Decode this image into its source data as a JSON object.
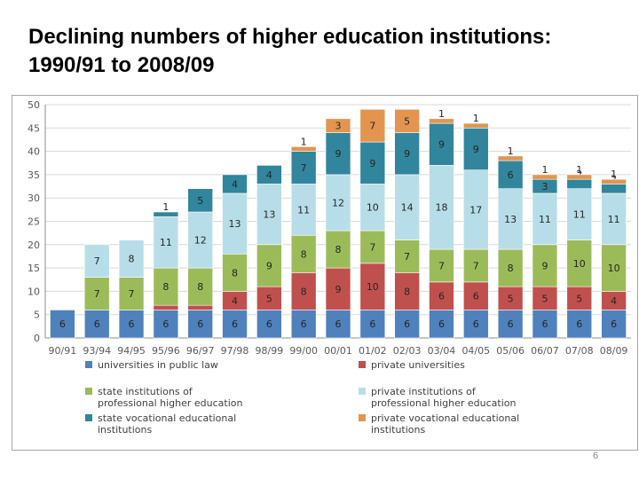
{
  "title": "Declining numbers of higher education institutions: 1990/91 to 2008/09",
  "page_number": "6",
  "colors": {
    "universities": "#4f81bd",
    "private_universities": "#c0504d",
    "state_professional": "#9bbb59",
    "private_professional": "#b7dee8",
    "state_vocational": "#31859c",
    "private_vocational": "#e3954f"
  },
  "chart_data": {
    "type": "bar",
    "stacked": true,
    "categories": [
      "90/91",
      "93/94",
      "94/95",
      "95/96",
      "96/97",
      "97/98",
      "98/99",
      "99/00",
      "00/01",
      "01/02",
      "02/03",
      "03/04",
      "04/05",
      "05/06",
      "06/07",
      "07/08",
      "08/09"
    ],
    "ylim": [
      0,
      50
    ],
    "yticks": [
      0,
      5,
      10,
      15,
      20,
      25,
      30,
      35,
      40,
      45,
      50
    ],
    "grid": true,
    "legend_position": "bottom",
    "series": [
      {
        "name": "universities in public law",
        "color": "#4f81bd",
        "values": [
          6,
          6,
          6,
          6,
          6,
          6,
          6,
          6,
          6,
          6,
          6,
          6,
          6,
          6,
          6,
          6,
          6
        ]
      },
      {
        "name": "private universities",
        "color": "#c0504d",
        "values": [
          0,
          0,
          0,
          1,
          1,
          4,
          5,
          8,
          9,
          10,
          8,
          6,
          6,
          5,
          5,
          5,
          4
        ]
      },
      {
        "name": "state institutions  of professional higher education",
        "color": "#9bbb59",
        "values": [
          0,
          7,
          7,
          8,
          8,
          8,
          9,
          8,
          8,
          7,
          7,
          7,
          7,
          8,
          9,
          10,
          10
        ]
      },
      {
        "name": "private institutions  of professional higher education",
        "color": "#b7dee8",
        "values": [
          0,
          7,
          8,
          11,
          12,
          13,
          13,
          11,
          12,
          10,
          14,
          18,
          17,
          13,
          11,
          11,
          11
        ]
      },
      {
        "name": "state vocational educational institutions",
        "color": "#31859c",
        "values": [
          0,
          0,
          0,
          1,
          5,
          4,
          4,
          7,
          9,
          9,
          9,
          9,
          9,
          6,
          3,
          2,
          2
        ]
      },
      {
        "name": "private vocational educational institutions",
        "color": "#e3954f",
        "values": [
          0,
          0,
          0,
          0,
          0,
          0,
          0,
          1,
          3,
          7,
          5,
          1,
          1,
          1,
          1,
          1,
          1
        ]
      }
    ]
  }
}
